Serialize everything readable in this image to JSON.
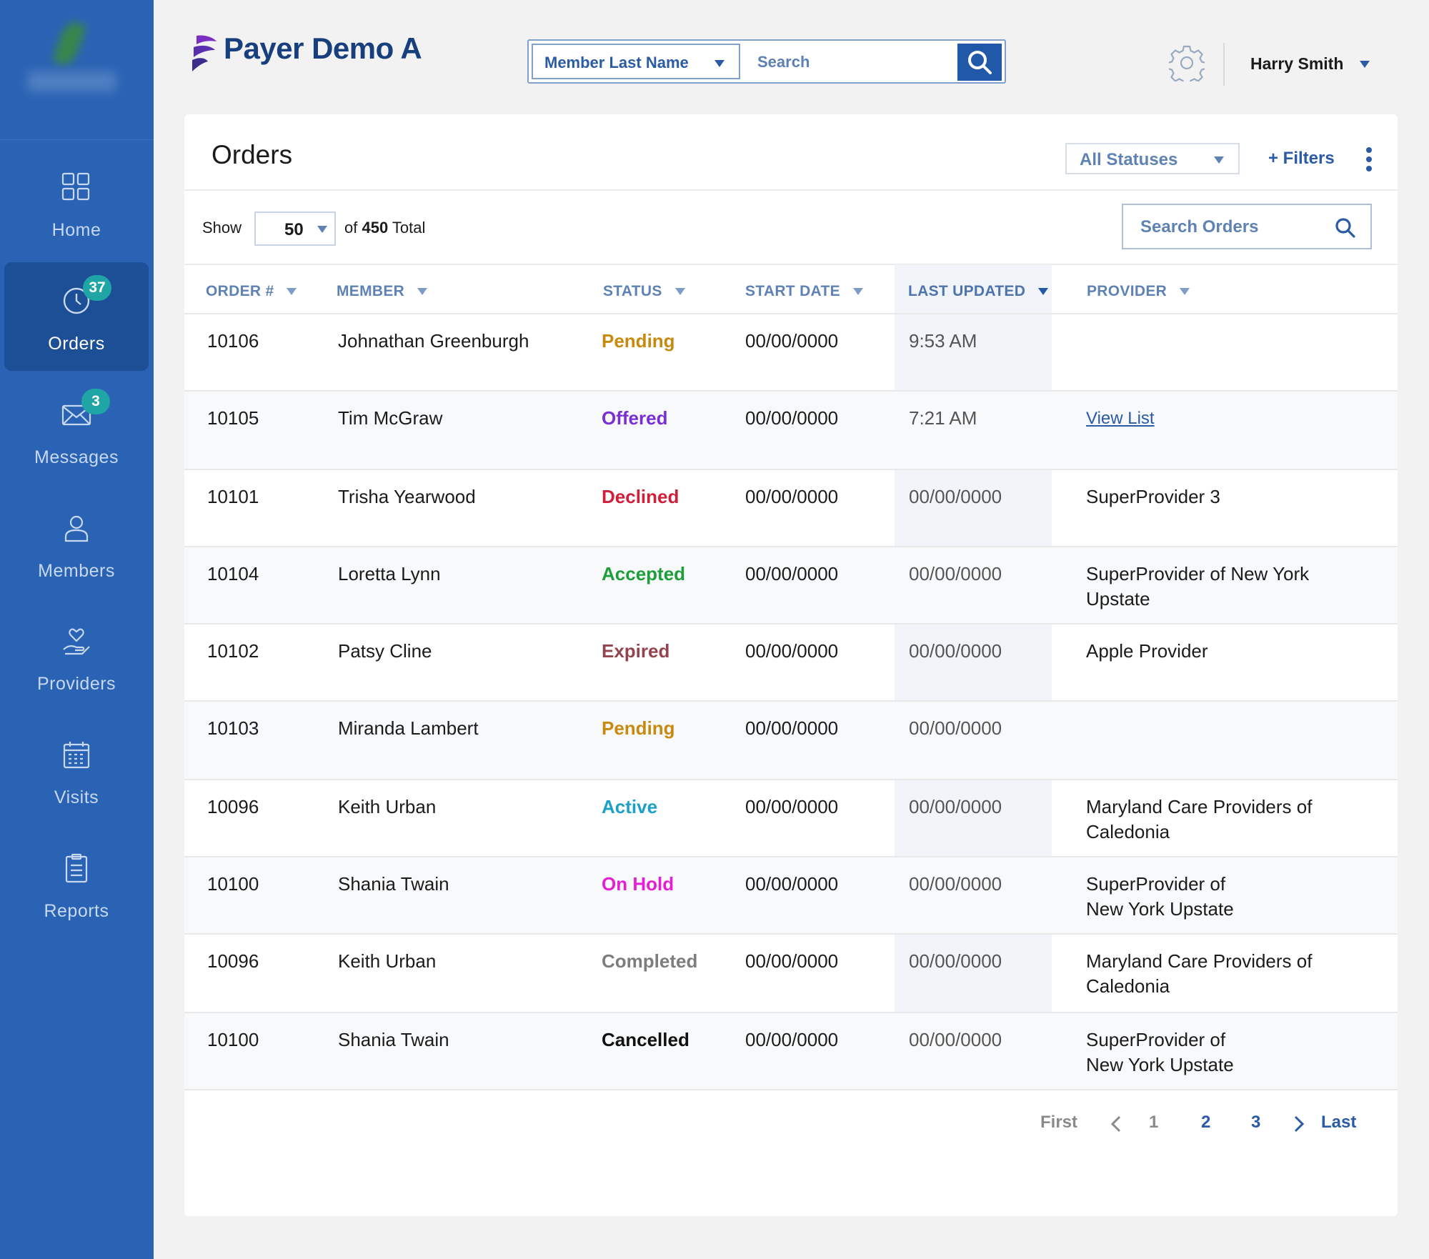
{
  "sidebar": {
    "items": [
      {
        "label": "Home",
        "icon": "grid-icon",
        "badge": ""
      },
      {
        "label": "Orders",
        "icon": "clock-icon",
        "badge": "37"
      },
      {
        "label": "Messages",
        "icon": "envelope-icon",
        "badge": "3"
      },
      {
        "label": "Members",
        "icon": "person-icon",
        "badge": ""
      },
      {
        "label": "Providers",
        "icon": "heart-hand-icon",
        "badge": ""
      },
      {
        "label": "Visits",
        "icon": "calendar-icon",
        "badge": ""
      },
      {
        "label": "Reports",
        "icon": "clipboard-icon",
        "badge": ""
      }
    ],
    "active": "Orders"
  },
  "header": {
    "brand": "Payer Demo A",
    "search_field": "Member Last Name",
    "search_placeholder": "Search",
    "user_name": "Harry Smith"
  },
  "orders": {
    "title": "Orders",
    "status_filter": "All Statuses",
    "filters_label": "+ Filters",
    "show_label": "Show",
    "page_size": "50",
    "total_prefix": "of",
    "total_count": "450",
    "total_suffix": "Total",
    "search_placeholder": "Search Orders",
    "columns": [
      "ORDER #",
      "MEMBER",
      "STATUS",
      "START DATE",
      "LAST UPDATED",
      "PROVIDER"
    ],
    "sorted_column": "LAST UPDATED",
    "rows": [
      {
        "order": "10106",
        "member": "Johnathan Greenburgh",
        "status": "Pending",
        "start": "00/00/0000",
        "updated": "9:53 AM",
        "provider": "",
        "provider_link": false
      },
      {
        "order": "10105",
        "member": "Tim McGraw",
        "status": "Offered",
        "start": "00/00/0000",
        "updated": "7:21 AM",
        "provider": "View List",
        "provider_link": true
      },
      {
        "order": "10101",
        "member": "Trisha Yearwood",
        "status": "Declined",
        "start": "00/00/0000",
        "updated": "00/00/0000",
        "provider": "SuperProvider 3",
        "provider_link": false
      },
      {
        "order": "10104",
        "member": "Loretta Lynn",
        "status": "Accepted",
        "start": "00/00/0000",
        "updated": "00/00/0000",
        "provider": "SuperProvider of New York Upstate",
        "provider_link": false
      },
      {
        "order": "10102",
        "member": "Patsy Cline",
        "status": "Expired",
        "start": "00/00/0000",
        "updated": "00/00/0000",
        "provider": "Apple Provider",
        "provider_link": false
      },
      {
        "order": "10103",
        "member": "Miranda Lambert",
        "status": "Pending",
        "start": "00/00/0000",
        "updated": "00/00/0000",
        "provider": "",
        "provider_link": false
      },
      {
        "order": "10096",
        "member": "Keith Urban",
        "status": "Active",
        "start": "00/00/0000",
        "updated": "00/00/0000",
        "provider": "Maryland Care Providers of Caledonia",
        "provider_link": false
      },
      {
        "order": "10100",
        "member": "Shania Twain",
        "status": "On Hold",
        "start": "00/00/0000",
        "updated": "00/00/0000",
        "provider": "SuperProvider of\nNew York Upstate",
        "provider_link": false
      },
      {
        "order": "10096",
        "member": "Keith Urban",
        "status": "Completed",
        "start": "00/00/0000",
        "updated": "00/00/0000",
        "provider": "Maryland Care Providers of Caledonia",
        "provider_link": false
      },
      {
        "order": "10100",
        "member": "Shania Twain",
        "status": "Cancelled",
        "start": "00/00/0000",
        "updated": "00/00/0000",
        "provider": "SuperProvider of\nNew York Upstate",
        "provider_link": false
      }
    ]
  },
  "status_colors": {
    "Pending": "#c88a0e",
    "Offered": "#7a2fd4",
    "Declined": "#d01f3a",
    "Accepted": "#1e9e3a",
    "Expired": "#94444f",
    "Active": "#1ca0c8",
    "On Hold": "#e61fd6",
    "Completed": "#7d7d7d",
    "Cancelled": "#111111"
  },
  "pagination": {
    "first": "First",
    "pages": [
      "1",
      "2",
      "3"
    ],
    "current": "1",
    "last": "Last"
  },
  "colors": {
    "sidebar": "#2b63b4",
    "sidebar_active": "#1d4f97",
    "accent": "#2258a8",
    "badge": "#1fa5a5"
  }
}
